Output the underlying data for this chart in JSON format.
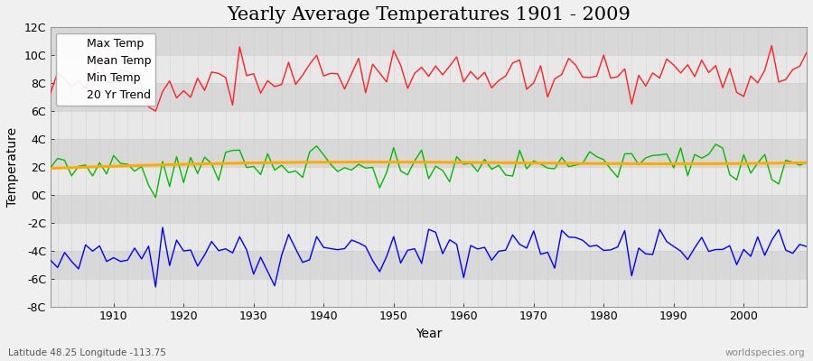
{
  "title": "Yearly Average Temperatures 1901 - 2009",
  "xlabel": "Year",
  "ylabel": "Temperature",
  "background_color": "#f0f0f0",
  "plot_bg_color": "#e8e8e8",
  "legend_loc": "upper left",
  "ylim": [
    -8,
    12
  ],
  "yticks": [
    -8,
    -6,
    -4,
    -2,
    0,
    2,
    4,
    6,
    8,
    10,
    12
  ],
  "ytick_labels": [
    "-8C",
    "-6C",
    "-4C",
    "-2C",
    "0C",
    "2C",
    "4C",
    "6C",
    "8C",
    "10C",
    "12C"
  ],
  "max_color": "#ff2020",
  "mean_color": "#00bb00",
  "min_color": "#0000ff",
  "trend_color": "#ffaa00",
  "watermark_left": "Latitude 48.25 Longitude -113.75",
  "watermark_right": "worldspecies.org",
  "title_fontsize": 15,
  "axis_label_fontsize": 10,
  "legend_fontsize": 9,
  "linewidth": 1.0,
  "trend_linewidth": 2.2,
  "grid_color": "#cccccc",
  "band_color_1": "#e8e8e8",
  "band_color_2": "#d8d8d8",
  "xmin": 1901,
  "xmax": 2009
}
